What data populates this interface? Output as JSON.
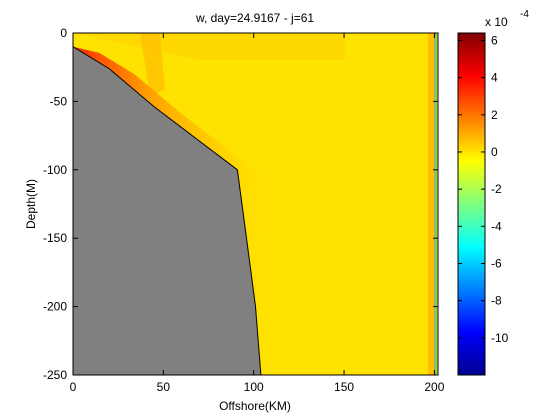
{
  "chart_data": {
    "type": "heatmap",
    "title": "w, day=24.9167 - j=61",
    "xlabel": "Offshore(KM)",
    "ylabel": "Depth(M)",
    "xlim": [
      0,
      202
    ],
    "ylim": [
      -250,
      0
    ],
    "x_ticks": [
      {
        "value": 0,
        "label": "0"
      },
      {
        "value": 50,
        "label": "50"
      },
      {
        "value": 100,
        "label": "100"
      },
      {
        "value": 150,
        "label": "150"
      },
      {
        "value": 200,
        "label": "200"
      }
    ],
    "y_ticks": [
      {
        "value": 0,
        "label": "0"
      },
      {
        "value": -50,
        "label": "-50"
      },
      {
        "value": -100,
        "label": "-100"
      },
      {
        "value": -150,
        "label": "-150"
      },
      {
        "value": -200,
        "label": "-200"
      },
      {
        "value": -250,
        "label": "-250"
      }
    ],
    "colorbar": {
      "colormap": "jet",
      "range": [
        -0.0012,
        0.00064
      ],
      "exponent_label": "x 10",
      "exponent_value": "-4",
      "ticks": [
        {
          "value": 6,
          "label": "6"
        },
        {
          "value": 4,
          "label": "4"
        },
        {
          "value": 2,
          "label": "2"
        },
        {
          "value": 0,
          "label": "0"
        },
        {
          "value": -2,
          "label": "-2"
        },
        {
          "value": -4,
          "label": "-4"
        },
        {
          "value": -6,
          "label": "-6"
        },
        {
          "value": -8,
          "label": "-8"
        },
        {
          "value": -10,
          "label": "-10"
        }
      ]
    },
    "background_value": 0.0,
    "land_mask_color": "#808080",
    "bathymetry": [
      {
        "x": 0,
        "depth": -10
      },
      {
        "x": 20,
        "depth": -26
      },
      {
        "x": 45,
        "depth": -54
      },
      {
        "x": 70,
        "depth": -79
      },
      {
        "x": 91,
        "depth": -100
      },
      {
        "x": 96,
        "depth": -150
      },
      {
        "x": 101,
        "depth": -200
      },
      {
        "x": 104,
        "depth": -250
      }
    ],
    "features": [
      {
        "desc": "upwelling band along slope",
        "value": 0.0005
      },
      {
        "desc": "weak positive plume near surface",
        "value": 0.0001
      },
      {
        "desc": "offshore boundary band",
        "value": 0.0004
      }
    ]
  }
}
